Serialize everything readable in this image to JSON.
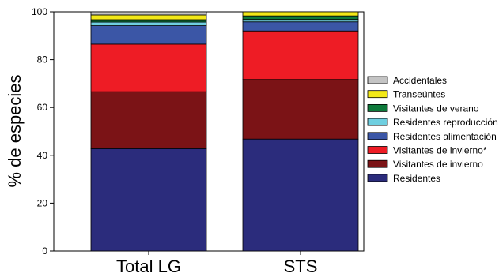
{
  "chart_data": {
    "type": "bar",
    "stacked": true,
    "title": "",
    "xlabel": "",
    "ylabel": "% de especies",
    "ylim": [
      0,
      100
    ],
    "yticks": [
      0,
      20,
      40,
      60,
      80,
      100
    ],
    "categories": [
      "Total LG",
      "STS"
    ],
    "series": [
      {
        "name": "Residentes",
        "color": "#2b2c7c",
        "values": [
          42.8,
          46.8
        ]
      },
      {
        "name": "Visitantes de invierno",
        "color": "#7b1316",
        "values": [
          23.8,
          24.9
        ]
      },
      {
        "name": "Visitantes de invierno*",
        "color": "#ee1c25",
        "values": [
          19.9,
          20.3
        ]
      },
      {
        "name": "Residentes alimentación",
        "color": "#3b56a6",
        "values": [
          7.7,
          3.8
        ]
      },
      {
        "name": "Residentes reproducción",
        "color": "#6fcfe0",
        "values": [
          1.5,
          1.0
        ]
      },
      {
        "name": "Visitantes de verano",
        "color": "#0e7a3b",
        "values": [
          1.0,
          1.5
        ]
      },
      {
        "name": "Transeúntes",
        "color": "#f2e818",
        "values": [
          2.0,
          1.7
        ]
      },
      {
        "name": "Accidentales",
        "color": "#c4c4c4",
        "values": [
          1.3,
          0.0
        ]
      }
    ],
    "legend_order": [
      "Accidentales",
      "Transeúntes",
      "Visitantes de verano",
      "Residentes reproducción",
      "Residentes alimentación",
      "Visitantes de invierno*",
      "Visitantes de invierno",
      "Residentes"
    ],
    "legend_position": "right",
    "grid": false
  }
}
